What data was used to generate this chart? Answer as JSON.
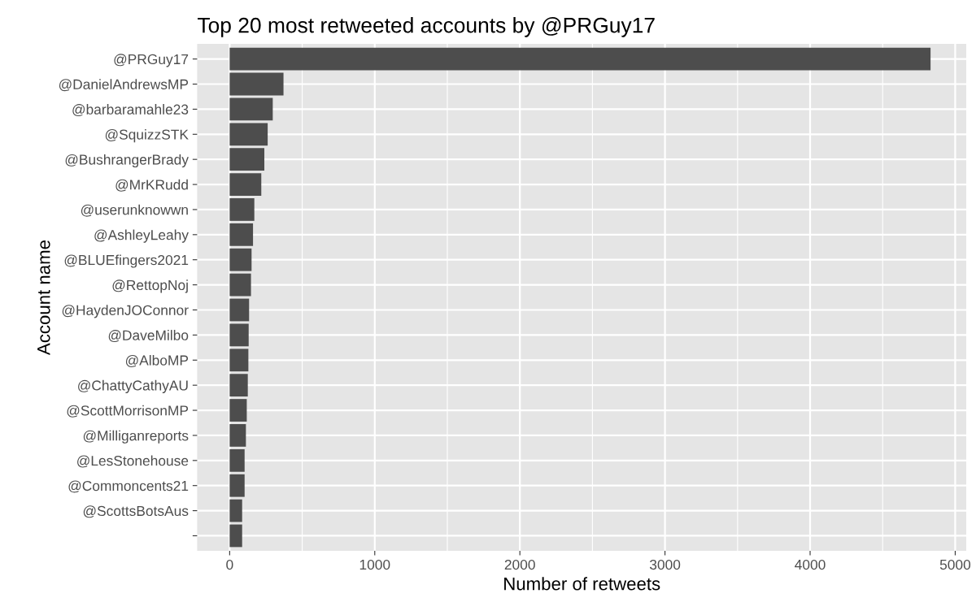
{
  "chart_data": {
    "type": "bar",
    "orientation": "horizontal",
    "title": "Top 20 most retweeted accounts by @PRGuy17",
    "xlabel": "Number of retweets",
    "ylabel": "Account name",
    "categories": [
      "@PRGuy17",
      "@DanielAndrewsMP",
      "@barbaramahle23",
      "@SquizzSTK",
      "@BushrangerBrady",
      "@MrKRudd",
      "@userunknowwn",
      "@AshleyLeahy",
      "@BLUEfingers2021",
      "@RettopNoj",
      "@HaydenJOConnor",
      "@DaveMilbo",
      "@AlboMP",
      "@ChattyCathyAU",
      "@ScottMorrisonMP",
      "@Milliganreports",
      "@LesStonehouse",
      "@Commoncents21",
      "@ScottsBotsAus",
      null
    ],
    "values": [
      4830,
      371,
      297,
      262,
      239,
      218,
      170,
      161,
      151,
      147,
      134,
      131,
      129,
      125,
      118,
      112,
      103,
      103,
      86,
      86
    ],
    "color": "#4d4d4d",
    "xlim": [
      -224,
      5076
    ],
    "xticks": [
      0,
      1000,
      2000,
      3000,
      4000,
      5000
    ],
    "grid": true
  }
}
